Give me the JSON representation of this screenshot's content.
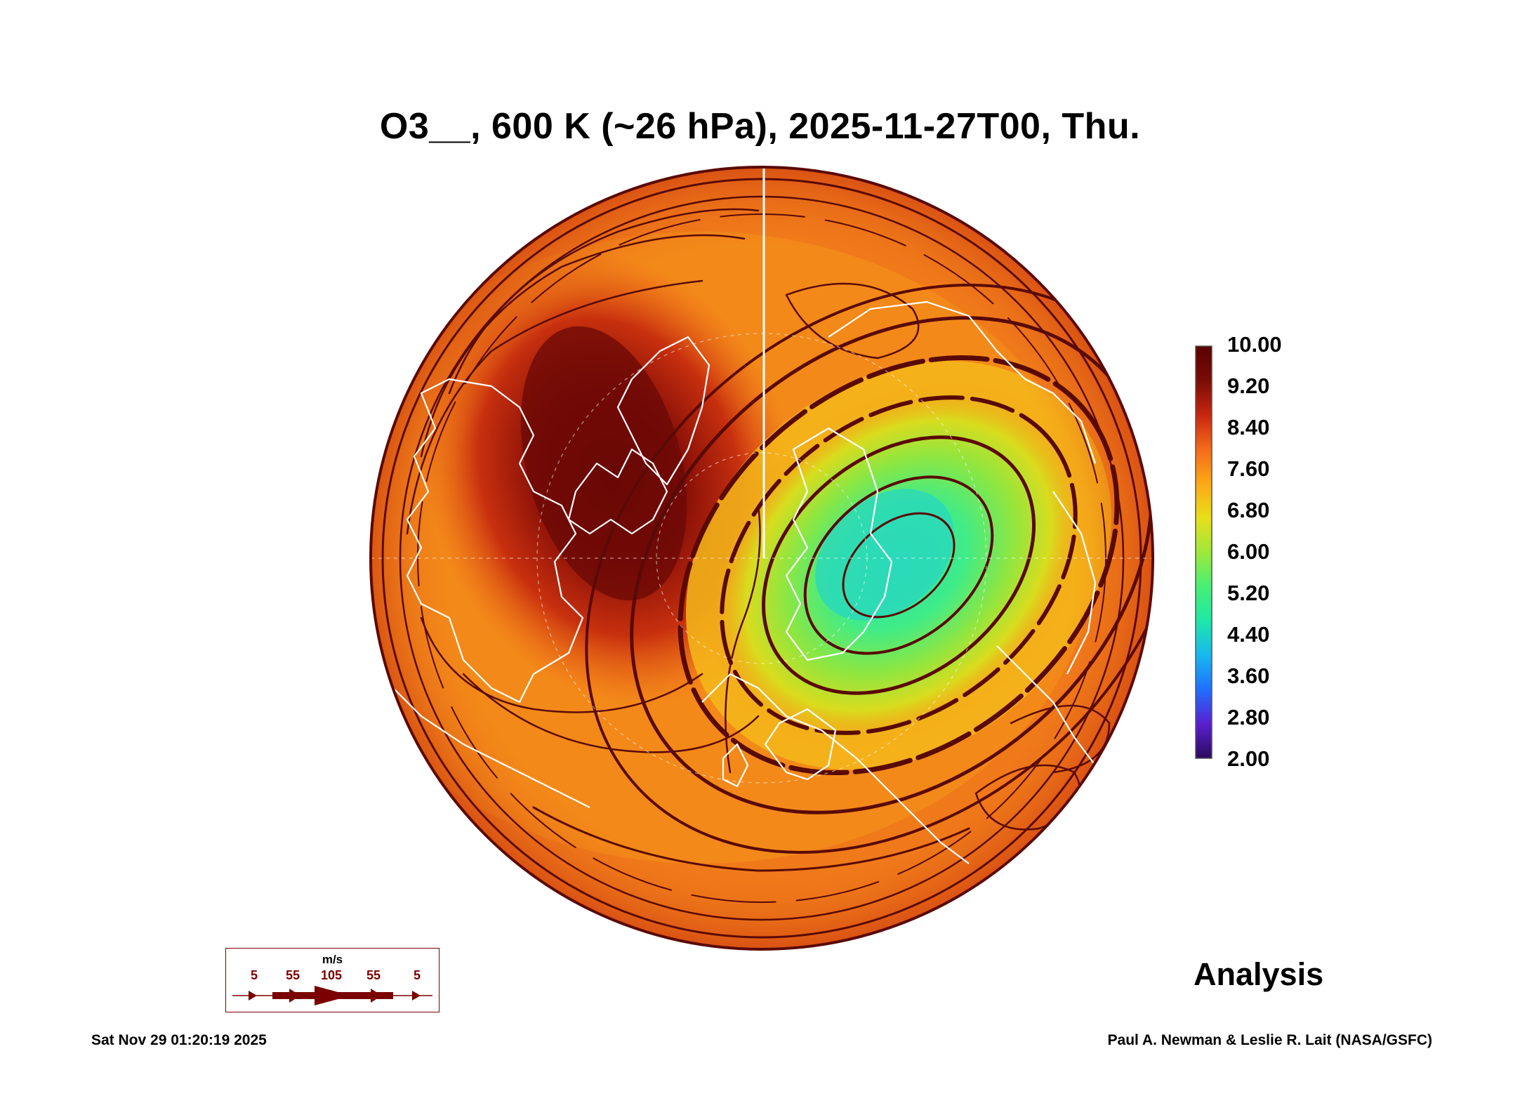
{
  "title": "O3__, 600 K (~26 hPa), 2025-11-27T00, Thu.",
  "colorbar": {
    "labels": [
      "10.00",
      "9.20",
      "8.40",
      "7.60",
      "6.80",
      "6.00",
      "5.20",
      "4.40",
      "3.60",
      "2.80",
      "2.00"
    ],
    "min": 2.0,
    "max": 10.0,
    "stops": [
      "#2a0a5e",
      "#5a1fd0",
      "#1f6fff",
      "#17b8f0",
      "#1ee8a8",
      "#47f075",
      "#9fe83a",
      "#e8df1a",
      "#fda816",
      "#f46a1a",
      "#c8260f",
      "#7a0c06",
      "#5a0000"
    ]
  },
  "map": {
    "projection": "north-polar-stereographic",
    "variable": "O3__",
    "level": "600 K (~26 hPa)",
    "colors": {
      "high": "#7a0c06",
      "background": "#f07a1a",
      "low_core": "#2fe6a0",
      "streamline": "#5a0a06",
      "coastline": "#ffffff"
    }
  },
  "wind_key": {
    "unit": "m/s",
    "labels": [
      "5",
      "55",
      "105",
      "55",
      "5"
    ],
    "color": "#7a0000"
  },
  "analysis_label": "Analysis",
  "timestamp": "Sat Nov 29 01:20:19 2025",
  "credit": "Paul A. Newman & Leslie R. Lait (NASA/GSFC)"
}
